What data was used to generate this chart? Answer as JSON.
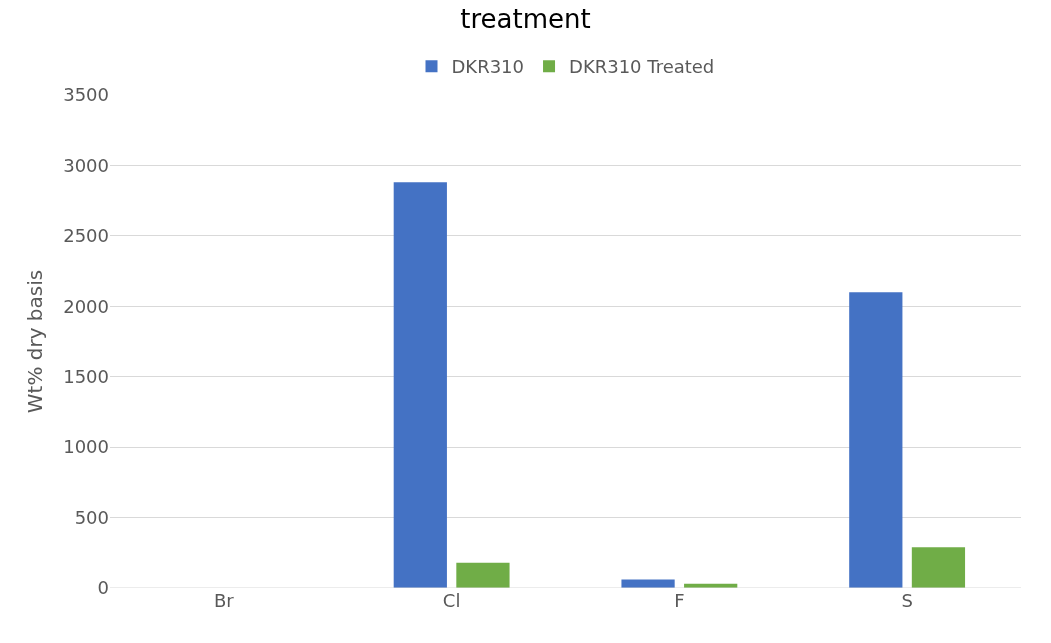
{
  "chart_data": {
    "type": "bar",
    "title": "treatment",
    "ylabel": "Wt% dry basis",
    "categories": [
      "Br",
      "Cl",
      "F",
      "S"
    ],
    "series": [
      {
        "name": "DKR310",
        "color": "#4472c4",
        "values": [
          0,
          2880,
          60,
          2100
        ]
      },
      {
        "name": "DKR310 Treated",
        "color": "#70ad47",
        "values": [
          0,
          180,
          30,
          290
        ]
      }
    ],
    "ylim": [
      0,
      3500
    ],
    "yticks": [
      0,
      500,
      1000,
      1500,
      2000,
      2500,
      3000,
      3500
    ],
    "grid": "y",
    "legend": "top"
  }
}
